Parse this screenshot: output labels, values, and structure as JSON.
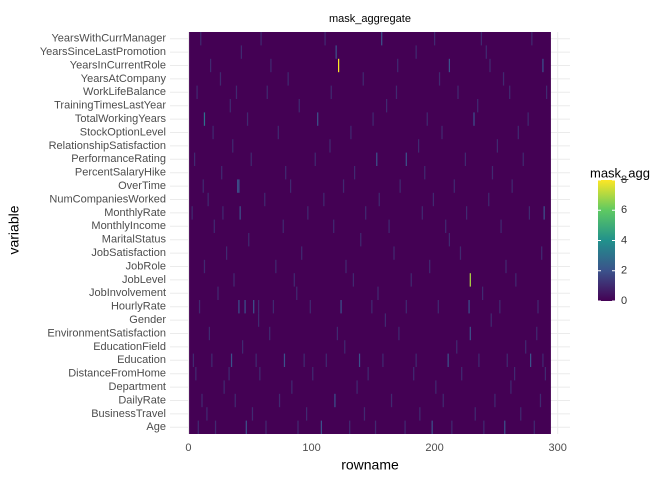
{
  "chart_data": {
    "type": "heatmap",
    "title": "mask_aggregate",
    "x_label": "rowname",
    "y_label": "variable",
    "xlim": [
      -15,
      310
    ],
    "xticks": [
      0,
      100,
      200,
      300
    ],
    "categories": [
      "Age",
      "BusinessTravel",
      "DailyRate",
      "Department",
      "DistanceFromHome",
      "Education",
      "EducationField",
      "EnvironmentSatisfaction",
      "Gender",
      "HourlyRate",
      "JobInvolvement",
      "JobLevel",
      "JobRole",
      "JobSatisfaction",
      "MaritalStatus",
      "MonthlyIncome",
      "MonthlyRate",
      "NumCompaniesWorked",
      "OverTime",
      "PercentSalaryHike",
      "PerformanceRating",
      "RelationshipSatisfaction",
      "StockOptionLevel",
      "TotalWorkingYears",
      "TrainingTimesLastYear",
      "WorkLifeBalance",
      "YearsAtCompany",
      "YearsInCurrentRole",
      "YearsSinceLastPromotion",
      "YearsWithCurrManager"
    ],
    "series": [
      {
        "name": "Age",
        "x": [
          8,
          22,
          47,
          63,
          89,
          108,
          131,
          152,
          176,
          198,
          214,
          240,
          257,
          281
        ],
        "values": [
          1,
          1,
          2,
          1,
          1,
          2,
          1,
          1,
          1,
          2,
          1,
          1,
          2,
          1
        ]
      },
      {
        "name": "BusinessTravel",
        "x": [
          15,
          52,
          96,
          143,
          188,
          233,
          270
        ],
        "values": [
          1,
          1,
          1,
          1,
          1,
          1,
          1
        ]
      },
      {
        "name": "DailyRate",
        "x": [
          11,
          38,
          74,
          119,
          165,
          207,
          249,
          286
        ],
        "values": [
          1,
          1,
          1,
          2,
          1,
          1,
          1,
          1
        ]
      },
      {
        "name": "Department",
        "x": [
          29,
          84,
          137,
          201,
          262
        ],
        "values": [
          1,
          1,
          1,
          1,
          1
        ]
      },
      {
        "name": "DistanceFromHome",
        "x": [
          6,
          33,
          58,
          101,
          146,
          183,
          222,
          265,
          290
        ],
        "values": [
          1,
          1,
          1,
          1,
          1,
          1,
          1,
          1,
          1
        ]
      },
      {
        "name": "Education",
        "x": [
          4,
          19,
          35,
          55,
          78,
          94,
          112,
          139,
          158,
          185,
          211,
          236,
          259,
          278,
          288
        ],
        "values": [
          1,
          1,
          2,
          1,
          2,
          1,
          1,
          2,
          1,
          1,
          2,
          1,
          1,
          2,
          1
        ]
      },
      {
        "name": "EducationField",
        "x": [
          44,
          127,
          218,
          274
        ],
        "values": [
          1,
          1,
          1,
          1
        ]
      },
      {
        "name": "EnvironmentSatisfaction",
        "x": [
          17,
          66,
          121,
          171,
          229,
          283
        ],
        "values": [
          1,
          1,
          1,
          1,
          2,
          1
        ]
      },
      {
        "name": "Gender",
        "x": [
          57,
          160,
          246
        ],
        "values": [
          1,
          1,
          1
        ]
      },
      {
        "name": "HourlyRate",
        "x": [
          9,
          41,
          46,
          53,
          57,
          69,
          99,
          124,
          149,
          177,
          203,
          228,
          253,
          284
        ],
        "values": [
          1,
          2,
          2,
          2,
          1,
          1,
          1,
          2,
          1,
          1,
          1,
          2,
          1,
          1
        ]
      },
      {
        "name": "JobInvolvement",
        "x": [
          24,
          88,
          154,
          239
        ],
        "values": [
          1,
          1,
          1,
          1
        ]
      },
      {
        "name": "JobLevel",
        "x": [
          37,
          86,
          134,
          181,
          229,
          266
        ],
        "values": [
          1,
          1,
          1,
          1,
          7,
          1
        ]
      },
      {
        "name": "JobRole",
        "x": [
          13,
          71,
          128,
          196,
          258
        ],
        "values": [
          1,
          1,
          1,
          1,
          1
        ]
      },
      {
        "name": "JobSatisfaction",
        "x": [
          31,
          92,
          167,
          221,
          287
        ],
        "values": [
          1,
          1,
          1,
          1,
          1
        ]
      },
      {
        "name": "MaritalStatus",
        "x": [
          49,
          140,
          212
        ],
        "values": [
          1,
          1,
          1
        ]
      },
      {
        "name": "MonthlyIncome",
        "x": [
          21,
          77,
          118,
          163,
          209,
          254
        ],
        "values": [
          1,
          1,
          1,
          1,
          1,
          1
        ]
      },
      {
        "name": "MonthlyRate",
        "x": [
          3,
          28,
          42,
          97,
          144,
          190,
          226,
          277,
          289
        ],
        "values": [
          1,
          1,
          2,
          1,
          1,
          1,
          1,
          1,
          2
        ]
      },
      {
        "name": "NumCompaniesWorked",
        "x": [
          16,
          62,
          110,
          155,
          199,
          244
        ],
        "values": [
          1,
          1,
          1,
          1,
          1,
          1
        ]
      },
      {
        "name": "OverTime",
        "x": [
          12,
          40,
          41,
          83,
          126,
          172,
          216,
          263
        ],
        "values": [
          1,
          2,
          2,
          1,
          1,
          1,
          1,
          1
        ]
      },
      {
        "name": "PercentSalaryHike",
        "x": [
          27,
          79,
          135,
          192,
          247
        ],
        "values": [
          1,
          1,
          1,
          1,
          1
        ]
      },
      {
        "name": "PerformanceRating",
        "x": [
          5,
          51,
          103,
          153,
          177,
          225,
          272
        ],
        "values": [
          1,
          1,
          1,
          2,
          2,
          1,
          1
        ]
      },
      {
        "name": "RelationshipSatisfaction",
        "x": [
          36,
          115,
          187,
          251
        ],
        "values": [
          1,
          1,
          1,
          1
        ]
      },
      {
        "name": "StockOptionLevel",
        "x": [
          20,
          73,
          132,
          206,
          268
        ],
        "values": [
          1,
          1,
          1,
          1,
          1
        ]
      },
      {
        "name": "TotalWorkingYears",
        "x": [
          13,
          48,
          105,
          150,
          194,
          232,
          276
        ],
        "values": [
          3,
          1,
          2,
          1,
          1,
          2,
          1
        ]
      },
      {
        "name": "TrainingTimesLastYear",
        "x": [
          34,
          90,
          161,
          235
        ],
        "values": [
          1,
          1,
          1,
          1
        ]
      },
      {
        "name": "WorkLifeBalance",
        "x": [
          7,
          39,
          64,
          116,
          169,
          219,
          261,
          291
        ],
        "values": [
          1,
          1,
          1,
          1,
          1,
          1,
          1,
          1
        ]
      },
      {
        "name": "YearsAtCompany",
        "x": [
          26,
          81,
          142,
          204,
          256
        ],
        "values": [
          1,
          1,
          1,
          1,
          1
        ]
      },
      {
        "name": "YearsInCurrentRole",
        "x": [
          18,
          67,
          122,
          170,
          212,
          245,
          288
        ],
        "values": [
          1,
          1,
          8,
          1,
          2,
          1,
          2
        ]
      },
      {
        "name": "YearsSinceLastPromotion",
        "x": [
          43,
          120,
          185,
          242
        ],
        "values": [
          1,
          2,
          1,
          1
        ]
      },
      {
        "name": "YearsWithCurrManager",
        "x": [
          10,
          59,
          111,
          157,
          200,
          238,
          279
        ],
        "values": [
          1,
          1,
          1,
          2,
          1,
          1,
          1
        ]
      }
    ],
    "colorbar": {
      "title": "mask_agg",
      "lim": [
        0,
        8
      ],
      "ticks": [
        0,
        2,
        4,
        6,
        8
      ],
      "colors": [
        "#440154",
        "#3b528b",
        "#21918c",
        "#5ec962",
        "#fde725"
      ]
    }
  }
}
